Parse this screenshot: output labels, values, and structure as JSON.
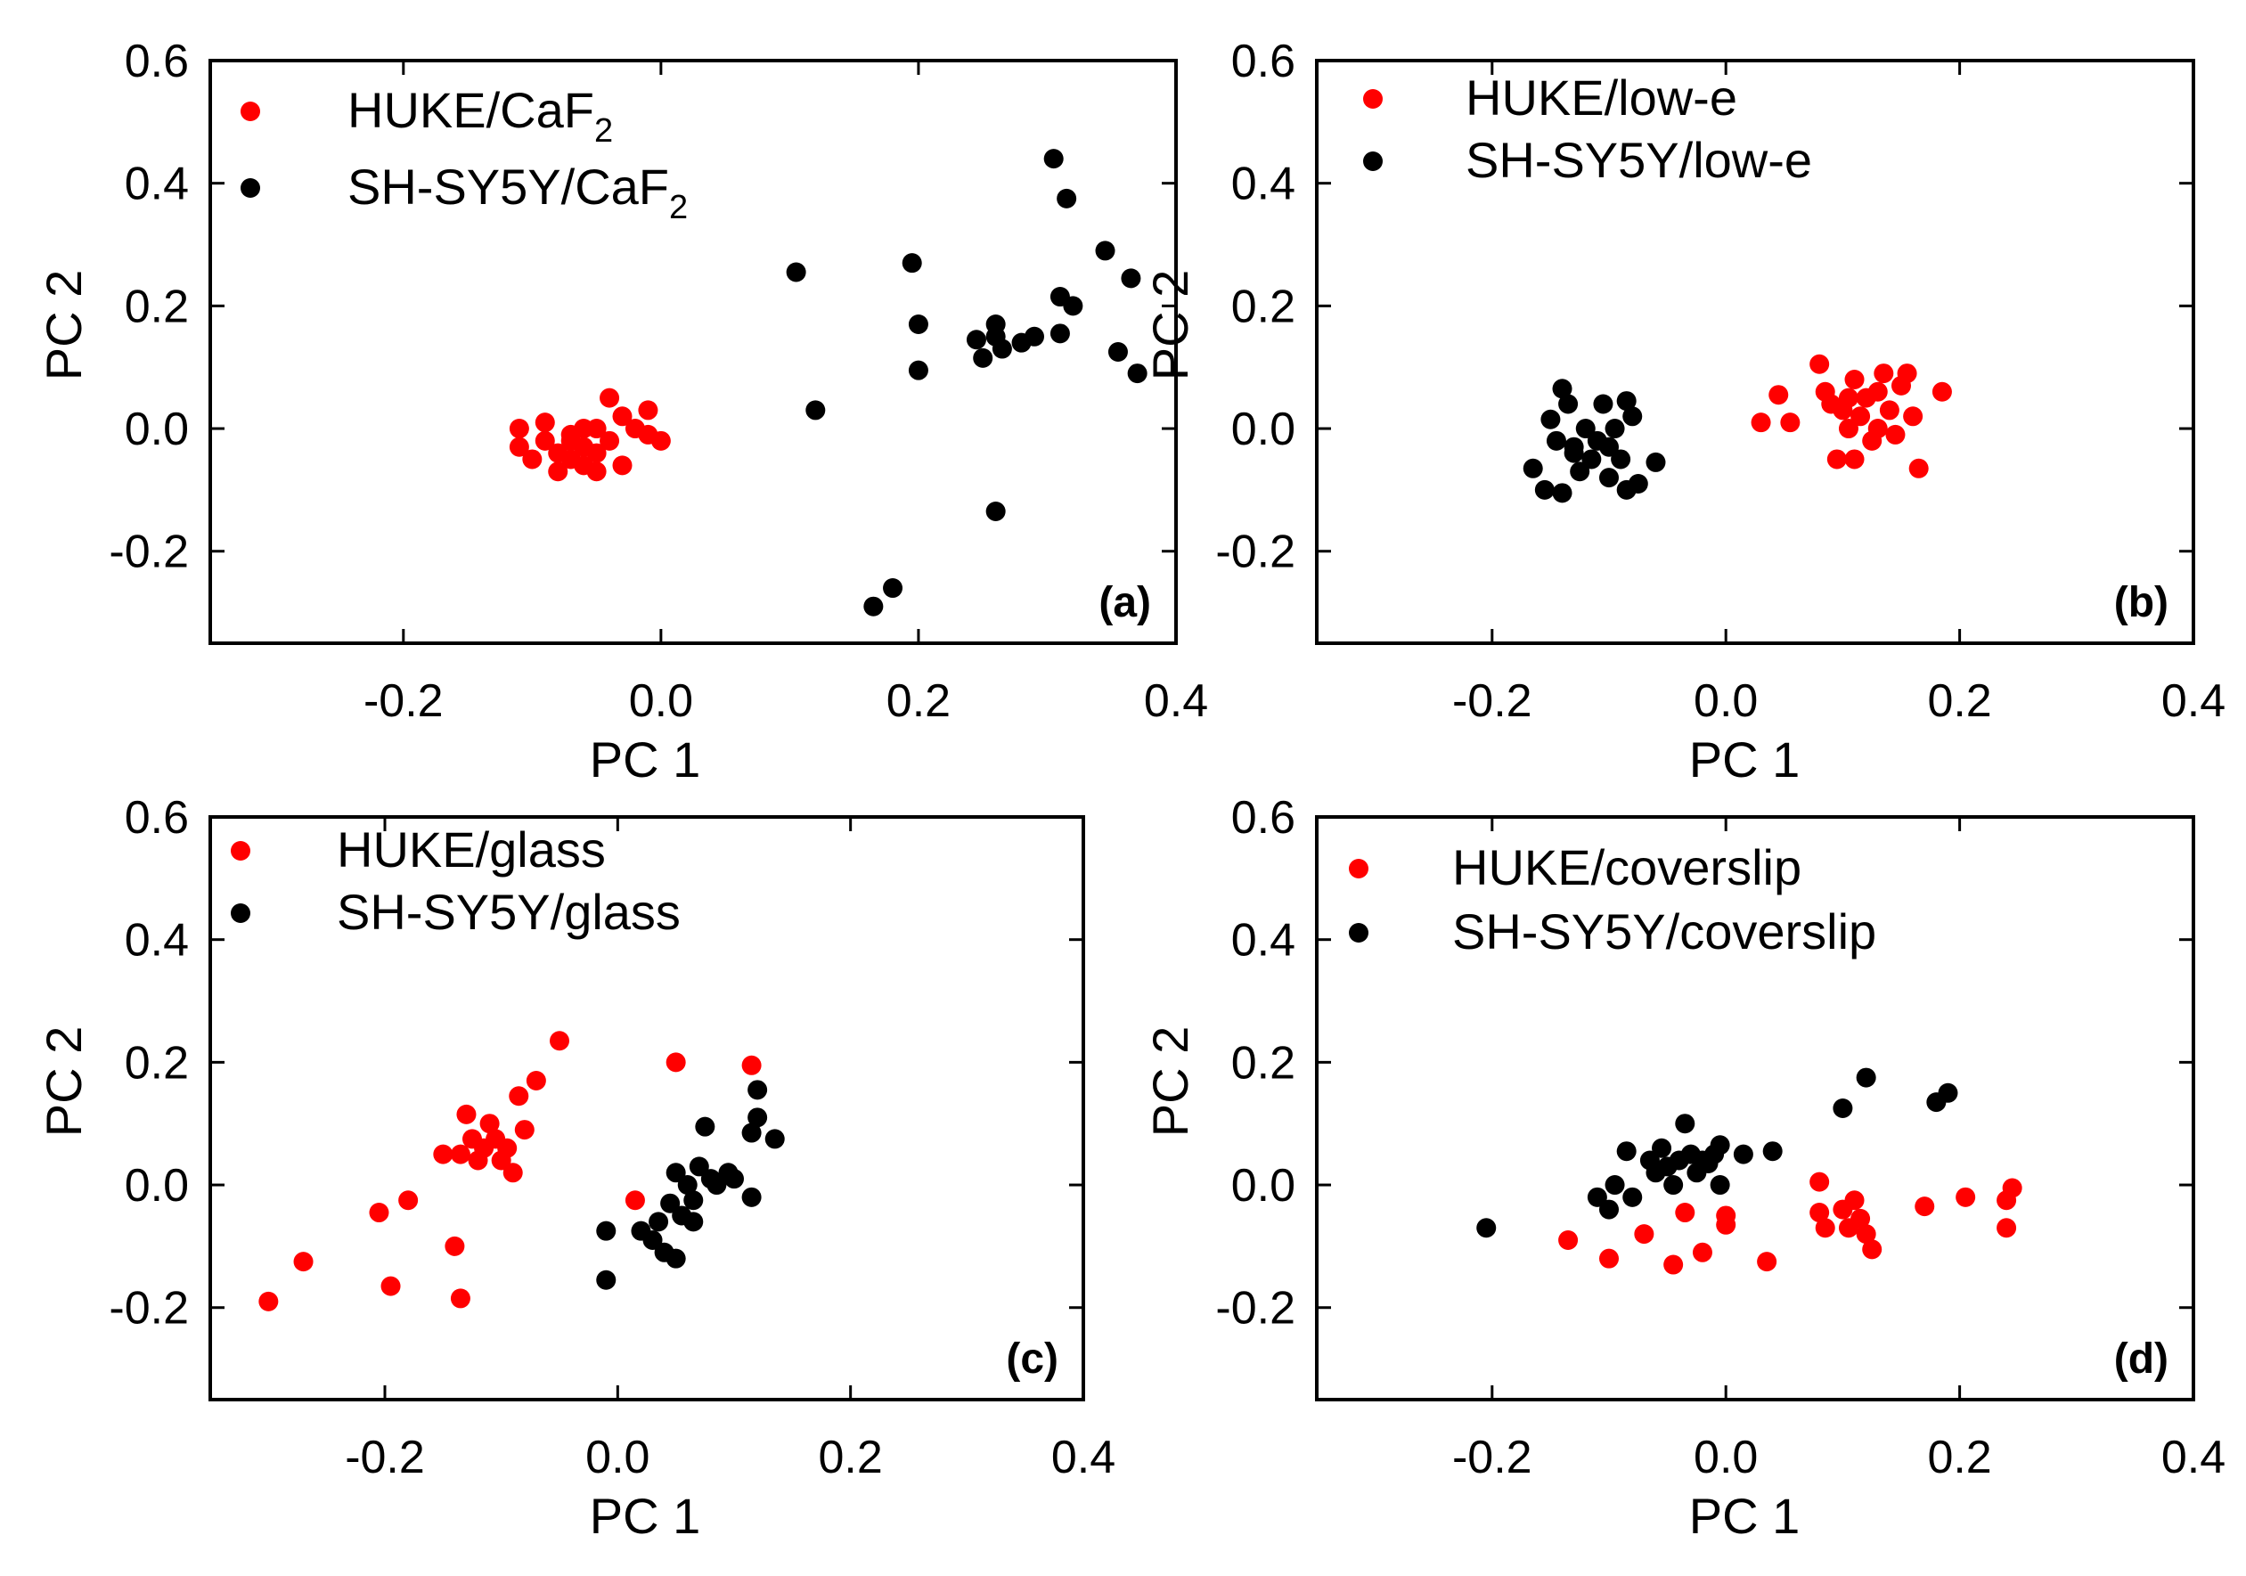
{
  "colors": {
    "huke": "#ff0000",
    "shsy5y": "#000000",
    "axis": "#000000"
  },
  "chart_data": [
    {
      "type": "scatter",
      "panel": "(a)",
      "xlabel": "PC 1",
      "ylabel": "PC 2",
      "xlim": [
        -0.35,
        0.4
      ],
      "ylim": [
        -0.35,
        0.6
      ],
      "xticks": [
        -0.2,
        0.0,
        0.2,
        0.4
      ],
      "yticks": [
        -0.2,
        0.0,
        0.2,
        0.4,
        0.6
      ],
      "series": [
        {
          "name": "HUKE/CaF",
          "name_sub": "2",
          "color": "#ff0000",
          "points": [
            [
              -0.11,
              0.0
            ],
            [
              -0.11,
              -0.03
            ],
            [
              -0.1,
              -0.05
            ],
            [
              -0.09,
              -0.02
            ],
            [
              -0.09,
              0.01
            ],
            [
              -0.08,
              -0.04
            ],
            [
              -0.08,
              -0.07
            ],
            [
              -0.07,
              -0.01
            ],
            [
              -0.07,
              -0.05
            ],
            [
              -0.06,
              -0.03
            ],
            [
              -0.06,
              -0.06
            ],
            [
              -0.05,
              0.0
            ],
            [
              -0.05,
              -0.04
            ],
            [
              -0.05,
              -0.07
            ],
            [
              -0.04,
              0.05
            ],
            [
              -0.04,
              -0.02
            ],
            [
              -0.03,
              -0.06
            ],
            [
              -0.03,
              0.02
            ],
            [
              -0.02,
              0.0
            ],
            [
              -0.01,
              0.03
            ],
            [
              -0.01,
              -0.01
            ],
            [
              0.0,
              -0.02
            ],
            [
              -0.07,
              -0.02
            ],
            [
              -0.06,
              0.0
            ]
          ]
        },
        {
          "name": "SH-SY5Y/CaF",
          "name_sub": "2",
          "color": "#000000",
          "points": [
            [
              0.105,
              0.255
            ],
            [
              0.12,
              0.03
            ],
            [
              0.165,
              -0.29
            ],
            [
              0.18,
              -0.26
            ],
            [
              0.195,
              0.27
            ],
            [
              0.2,
              0.095
            ],
            [
              0.2,
              0.17
            ],
            [
              0.245,
              0.145
            ],
            [
              0.25,
              0.115
            ],
            [
              0.26,
              0.15
            ],
            [
              0.26,
              0.17
            ],
            [
              0.265,
              0.13
            ],
            [
              0.28,
              0.14
            ],
            [
              0.29,
              0.15
            ],
            [
              0.26,
              -0.135
            ],
            [
              0.305,
              0.44
            ],
            [
              0.31,
              0.215
            ],
            [
              0.31,
              0.155
            ],
            [
              0.315,
              0.375
            ],
            [
              0.32,
              0.2
            ],
            [
              0.345,
              0.29
            ],
            [
              0.355,
              0.125
            ],
            [
              0.365,
              0.245
            ],
            [
              0.37,
              0.09
            ]
          ]
        }
      ]
    },
    {
      "type": "scatter",
      "panel": "(b)",
      "xlabel": "PC 1",
      "ylabel": "PC 2",
      "xlim": [
        -0.35,
        0.4
      ],
      "ylim": [
        -0.35,
        0.6
      ],
      "xticks": [
        -0.2,
        0.0,
        0.2,
        0.4
      ],
      "yticks": [
        -0.2,
        0.0,
        0.2,
        0.4,
        0.6
      ],
      "series": [
        {
          "name": "HUKE/low-e",
          "name_sub": "",
          "color": "#ff0000",
          "points": [
            [
              0.03,
              0.01
            ],
            [
              0.045,
              0.055
            ],
            [
              0.055,
              0.01
            ],
            [
              0.08,
              0.105
            ],
            [
              0.085,
              0.06
            ],
            [
              0.09,
              0.04
            ],
            [
              0.095,
              -0.05
            ],
            [
              0.1,
              0.03
            ],
            [
              0.105,
              0.0
            ],
            [
              0.11,
              0.08
            ],
            [
              0.11,
              -0.05
            ],
            [
              0.115,
              0.02
            ],
            [
              0.12,
              0.05
            ],
            [
              0.125,
              -0.02
            ],
            [
              0.13,
              0.06
            ],
            [
              0.13,
              0.0
            ],
            [
              0.135,
              0.09
            ],
            [
              0.14,
              0.03
            ],
            [
              0.145,
              -0.01
            ],
            [
              0.15,
              0.07
            ],
            [
              0.155,
              0.09
            ],
            [
              0.16,
              0.02
            ],
            [
              0.165,
              -0.065
            ],
            [
              0.185,
              0.06
            ],
            [
              0.105,
              0.05
            ]
          ]
        },
        {
          "name": "SH-SY5Y/low-e",
          "name_sub": "",
          "color": "#000000",
          "points": [
            [
              -0.165,
              -0.065
            ],
            [
              -0.155,
              -0.1
            ],
            [
              -0.15,
              0.015
            ],
            [
              -0.145,
              -0.02
            ],
            [
              -0.14,
              0.065
            ],
            [
              -0.14,
              -0.105
            ],
            [
              -0.135,
              0.04
            ],
            [
              -0.13,
              -0.03
            ],
            [
              -0.125,
              -0.07
            ],
            [
              -0.12,
              0.0
            ],
            [
              -0.115,
              -0.05
            ],
            [
              -0.11,
              -0.02
            ],
            [
              -0.105,
              0.04
            ],
            [
              -0.1,
              -0.03
            ],
            [
              -0.1,
              -0.08
            ],
            [
              -0.095,
              0.0
            ],
            [
              -0.09,
              -0.05
            ],
            [
              -0.085,
              -0.1
            ],
            [
              -0.08,
              0.02
            ],
            [
              -0.085,
              0.045
            ],
            [
              -0.075,
              -0.09
            ],
            [
              -0.06,
              -0.055
            ],
            [
              -0.13,
              -0.04
            ]
          ]
        }
      ]
    },
    {
      "type": "scatter",
      "panel": "(c)",
      "xlabel": "PC 1",
      "ylabel": "PC 2",
      "xlim": [
        -0.35,
        0.4
      ],
      "ylim": [
        -0.35,
        0.6
      ],
      "xticks": [
        -0.2,
        0.0,
        0.2,
        0.4
      ],
      "yticks": [
        -0.2,
        0.0,
        0.2,
        0.4,
        0.6
      ],
      "series": [
        {
          "name": "HUKE/glass",
          "name_sub": "",
          "color": "#ff0000",
          "points": [
            [
              -0.3,
              -0.19
            ],
            [
              -0.27,
              -0.125
            ],
            [
              -0.205,
              -0.045
            ],
            [
              -0.195,
              -0.165
            ],
            [
              -0.18,
              -0.025
            ],
            [
              -0.15,
              0.05
            ],
            [
              -0.14,
              -0.1
            ],
            [
              -0.135,
              -0.185
            ],
            [
              -0.135,
              0.05
            ],
            [
              -0.13,
              0.115
            ],
            [
              -0.125,
              0.075
            ],
            [
              -0.12,
              0.04
            ],
            [
              -0.115,
              0.06
            ],
            [
              -0.11,
              0.1
            ],
            [
              -0.105,
              0.075
            ],
            [
              -0.1,
              0.04
            ],
            [
              -0.095,
              0.06
            ],
            [
              -0.09,
              0.02
            ],
            [
              -0.085,
              0.145
            ],
            [
              -0.08,
              0.09
            ],
            [
              -0.07,
              0.17
            ],
            [
              -0.05,
              0.235
            ],
            [
              0.015,
              -0.025
            ],
            [
              0.05,
              0.2
            ],
            [
              0.115,
              0.195
            ]
          ]
        },
        {
          "name": "SH-SY5Y/glass",
          "name_sub": "",
          "color": "#000000",
          "points": [
            [
              -0.01,
              -0.155
            ],
            [
              -0.01,
              -0.075
            ],
            [
              0.02,
              -0.075
            ],
            [
              0.03,
              -0.09
            ],
            [
              0.035,
              -0.06
            ],
            [
              0.04,
              -0.11
            ],
            [
              0.045,
              -0.03
            ],
            [
              0.05,
              0.02
            ],
            [
              0.05,
              -0.12
            ],
            [
              0.055,
              -0.05
            ],
            [
              0.06,
              0.0
            ],
            [
              0.065,
              -0.06
            ],
            [
              0.07,
              0.03
            ],
            [
              0.075,
              0.095
            ],
            [
              0.08,
              0.01
            ],
            [
              0.085,
              0.0
            ],
            [
              0.095,
              0.02
            ],
            [
              0.1,
              0.01
            ],
            [
              0.115,
              -0.02
            ],
            [
              0.115,
              0.085
            ],
            [
              0.12,
              0.155
            ],
            [
              0.12,
              0.11
            ],
            [
              0.135,
              0.075
            ],
            [
              0.065,
              -0.025
            ]
          ]
        }
      ]
    },
    {
      "type": "scatter",
      "panel": "(d)",
      "xlabel": "PC 1",
      "ylabel": "PC 2",
      "xlim": [
        -0.35,
        0.4
      ],
      "ylim": [
        -0.35,
        0.6
      ],
      "xticks": [
        -0.2,
        0.0,
        0.2,
        0.4
      ],
      "yticks": [
        -0.2,
        0.0,
        0.2,
        0.4,
        0.6
      ],
      "series": [
        {
          "name": "HUKE/coverslip",
          "name_sub": "",
          "color": "#ff0000",
          "points": [
            [
              -0.135,
              -0.09
            ],
            [
              -0.1,
              -0.12
            ],
            [
              -0.07,
              -0.08
            ],
            [
              -0.045,
              -0.13
            ],
            [
              -0.035,
              -0.045
            ],
            [
              -0.02,
              -0.11
            ],
            [
              0.0,
              -0.05
            ],
            [
              0.0,
              -0.065
            ],
            [
              0.035,
              -0.125
            ],
            [
              0.08,
              0.005
            ],
            [
              0.08,
              -0.045
            ],
            [
              0.085,
              -0.07
            ],
            [
              0.1,
              -0.04
            ],
            [
              0.105,
              -0.07
            ],
            [
              0.11,
              -0.025
            ],
            [
              0.115,
              -0.055
            ],
            [
              0.12,
              -0.08
            ],
            [
              0.125,
              -0.105
            ],
            [
              0.17,
              -0.035
            ],
            [
              0.205,
              -0.02
            ],
            [
              0.24,
              -0.07
            ],
            [
              0.24,
              -0.025
            ],
            [
              0.245,
              -0.005
            ]
          ]
        },
        {
          "name": "SH-SY5Y/coverslip",
          "name_sub": "",
          "color": "#000000",
          "points": [
            [
              -0.205,
              -0.07
            ],
            [
              -0.11,
              -0.02
            ],
            [
              -0.1,
              -0.04
            ],
            [
              -0.095,
              0.0
            ],
            [
              -0.085,
              0.055
            ],
            [
              -0.08,
              -0.02
            ],
            [
              -0.065,
              0.04
            ],
            [
              -0.06,
              0.02
            ],
            [
              -0.055,
              0.06
            ],
            [
              -0.05,
              0.03
            ],
            [
              -0.045,
              0.0
            ],
            [
              -0.04,
              0.04
            ],
            [
              -0.035,
              0.1
            ],
            [
              -0.03,
              0.05
            ],
            [
              -0.025,
              0.02
            ],
            [
              -0.02,
              0.04
            ],
            [
              -0.015,
              0.035
            ],
            [
              -0.01,
              0.05
            ],
            [
              -0.005,
              0.065
            ],
            [
              -0.005,
              0.0
            ],
            [
              0.015,
              0.05
            ],
            [
              0.04,
              0.055
            ],
            [
              0.1,
              0.125
            ],
            [
              0.12,
              0.175
            ],
            [
              0.18,
              0.135
            ],
            [
              0.19,
              0.15
            ]
          ]
        }
      ]
    }
  ]
}
